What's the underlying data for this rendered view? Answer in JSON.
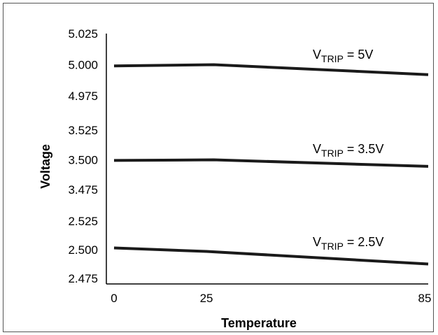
{
  "chart_data": {
    "type": "line",
    "xlabel": "Temperature",
    "ylabel": "Voltage",
    "x_ticks": [
      "0",
      "25",
      "85"
    ],
    "y_ticks": [
      "5.025",
      "5.000",
      "4.975",
      "3.525",
      "3.500",
      "3.475",
      "2.525",
      "2.500",
      "2.475"
    ],
    "x": [
      0,
      25,
      85
    ],
    "y_axis_broken": true,
    "grid": false,
    "series": [
      {
        "name": "V_TRIP = 5V",
        "label_main": "V",
        "label_sub": "TRIP",
        "label_tail": " = 5V",
        "x": [
          0,
          27,
          85
        ],
        "values": [
          4.999,
          5.0,
          4.992
        ]
      },
      {
        "name": "V_TRIP = 3.5V",
        "label_main": "V",
        "label_sub": "TRIP",
        "label_tail": " = 3.5V",
        "x": [
          0,
          27,
          85
        ],
        "values": [
          3.4995,
          3.5,
          3.4945
        ]
      },
      {
        "name": "V_TRIP = 2.5V",
        "label_main": "V",
        "label_sub": "TRIP",
        "label_tail": " = 2.5V",
        "x": [
          0,
          25,
          85
        ],
        "values": [
          2.5015,
          2.4985,
          2.4875
        ]
      }
    ],
    "colors": {
      "line": "#1a1a1a",
      "frame": "#555555"
    }
  }
}
